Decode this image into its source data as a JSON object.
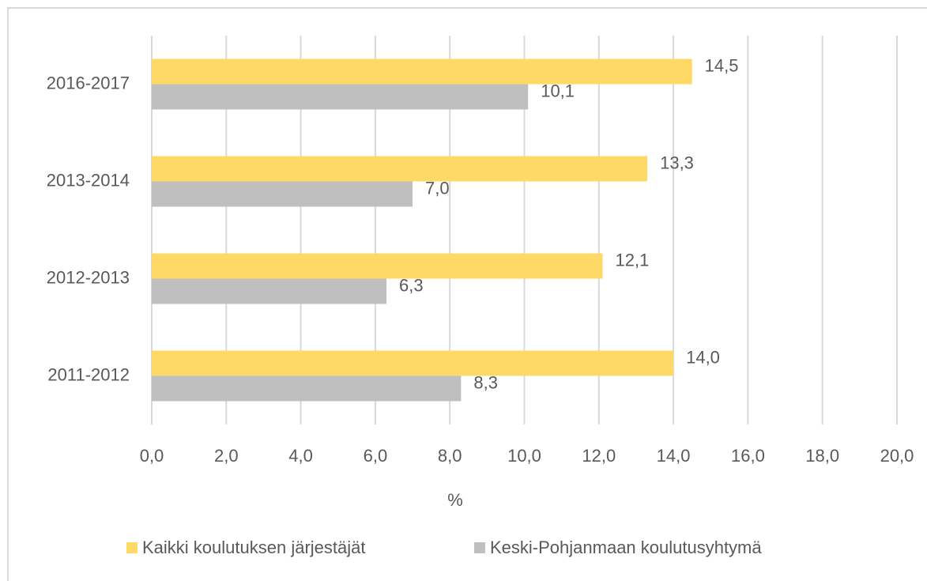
{
  "chart_data": {
    "type": "hbar",
    "categories": [
      "2016-2017",
      "2013-2014",
      "2012-2013",
      "2011-2012"
    ],
    "series": [
      {
        "name": "Kaikki koulutuksen järjestäjät",
        "color": "#ffd966",
        "values": [
          14.5,
          13.3,
          12.1,
          14.0
        ],
        "value_labels": [
          "14,5",
          "13,3",
          "12,1",
          "14,0"
        ]
      },
      {
        "name": "Keski-Pohjanmaan koulutusyhtymä",
        "color": "#bfbfbf",
        "values": [
          10.1,
          7.0,
          6.3,
          8.3
        ],
        "value_labels": [
          "10,1",
          "7,0",
          "6,3",
          "8,3"
        ]
      }
    ],
    "xlabel": "%",
    "xlim": [
      0,
      20
    ],
    "xticks": [
      {
        "value": 0,
        "label": "0,0"
      },
      {
        "value": 2,
        "label": "2,0"
      },
      {
        "value": 4,
        "label": "4,0"
      },
      {
        "value": 6,
        "label": "6,0"
      },
      {
        "value": 8,
        "label": "8,0"
      },
      {
        "value": 10,
        "label": "10,0"
      },
      {
        "value": 12,
        "label": "12,0"
      },
      {
        "value": 14,
        "label": "14,0"
      },
      {
        "value": 16,
        "label": "16,0"
      },
      {
        "value": 18,
        "label": "18,0"
      },
      {
        "value": 20,
        "label": "20,0"
      }
    ],
    "grid": true,
    "legend": "bottom"
  }
}
